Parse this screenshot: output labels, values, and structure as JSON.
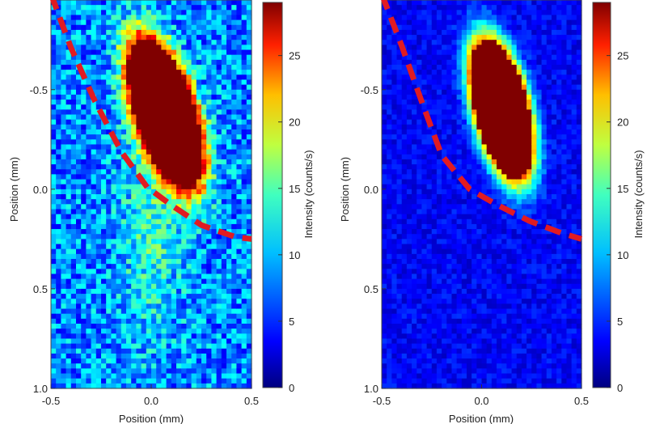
{
  "chart_data": [
    {
      "type": "heatmap",
      "title": "",
      "xlabel": "Position (mm)",
      "ylabel": "Position (mm)",
      "xlim": [
        -0.5,
        0.5
      ],
      "ylim": [
        -0.95,
        1.0
      ],
      "y_reversed": true,
      "x_ticks": [
        "-0.5",
        "0.0",
        "0.5"
      ],
      "y_ticks": [
        "-0.5",
        "0.0",
        "0.5",
        "1.0"
      ],
      "colorbar": {
        "label": "Intensity (counts/s)",
        "range": [
          0,
          29
        ],
        "ticks": [
          "0",
          "5",
          "10",
          "15",
          "20",
          "25"
        ]
      },
      "colormap": "jet",
      "background_level": "medium-high",
      "hotspot": {
        "center": [
          0.07,
          -0.38
        ],
        "major_axis_mm": 0.78,
        "minor_axis_mm": 0.3,
        "tilt_deg": 18,
        "peak": "saturated"
      },
      "dashed_boundary": [
        [
          -0.5,
          -0.98
        ],
        [
          -0.4,
          -0.71
        ],
        [
          -0.28,
          -0.44
        ],
        [
          -0.15,
          -0.19
        ],
        [
          -0.02,
          -0.01
        ],
        [
          0.1,
          0.08
        ],
        [
          0.25,
          0.18
        ],
        [
          0.42,
          0.24
        ],
        [
          0.5,
          0.25
        ]
      ]
    },
    {
      "type": "heatmap",
      "title": "",
      "xlabel": "Position (mm)",
      "ylabel": "Position (mm)",
      "xlim": [
        -0.5,
        0.5
      ],
      "ylim": [
        -0.95,
        1.0
      ],
      "y_reversed": true,
      "x_ticks": [
        "-0.5",
        "0.0",
        "0.5"
      ],
      "y_ticks": [
        "-0.5",
        "0.0",
        "0.5",
        "1.0"
      ],
      "colorbar": {
        "label": "Intensity (counts/s)",
        "range": [
          0,
          29
        ],
        "ticks": [
          "0",
          "5",
          "10",
          "15",
          "20",
          "25"
        ]
      },
      "colormap": "jet",
      "background_level": "low",
      "hotspot": {
        "center": [
          0.1,
          -0.4
        ],
        "major_axis_mm": 0.72,
        "minor_axis_mm": 0.27,
        "tilt_deg": 14,
        "peak": "saturated"
      },
      "dashed_boundary": [
        [
          -0.5,
          -0.98
        ],
        [
          -0.4,
          -0.72
        ],
        [
          -0.3,
          -0.44
        ],
        [
          -0.2,
          -0.17
        ],
        [
          -0.06,
          0.0
        ],
        [
          0.08,
          0.08
        ],
        [
          0.24,
          0.16
        ],
        [
          0.4,
          0.22
        ],
        [
          0.5,
          0.25
        ]
      ]
    }
  ]
}
